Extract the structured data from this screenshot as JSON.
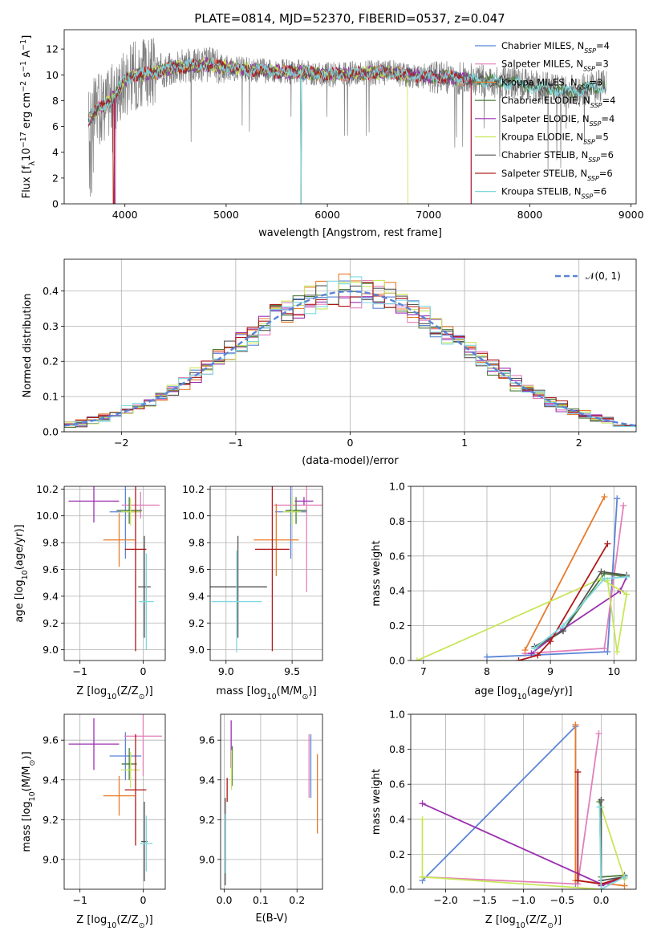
{
  "figure": {
    "title": "PLATE=0814, MJD=52370, FIBERID=0537, z=0.047"
  },
  "models": [
    {
      "name": "Chabrier MILES",
      "nssp": "4",
      "color": "#5b84d6"
    },
    {
      "name": "Salpeter MILES",
      "nssp": "3",
      "color": "#e37fba"
    },
    {
      "name": "Kroupa MILES",
      "nssp": "3",
      "color": "#e87b2c"
    },
    {
      "name": "Chabrier ELODIE",
      "nssp": "4",
      "color": "#4a7a3a"
    },
    {
      "name": "Salpeter ELODIE",
      "nssp": "4",
      "color": "#9b30b0"
    },
    {
      "name": "Kroupa ELODIE",
      "nssp": "5",
      "color": "#c8e65a"
    },
    {
      "name": "Chabrier STELIB",
      "nssp": "6",
      "color": "#555555"
    },
    {
      "name": "Salpeter STELIB",
      "nssp": "6",
      "color": "#b01818"
    },
    {
      "name": "Kroupa STELIB",
      "nssp": "6",
      "color": "#7fd8e0"
    }
  ],
  "chart_data": [
    {
      "id": "spectrum",
      "type": "line",
      "xlabel": "wavelength [Angstrom, rest frame]",
      "ylabel_main": "Flux [f",
      "ylabel_sub": "λ",
      "ylabel_rest": "10",
      "ylabel_exp": "−17",
      "ylabel_units": " erg cm",
      "ylabel_exp2": "−2",
      "ylabel_s": " s",
      "ylabel_exp3": "−1",
      "ylabel_a": " A",
      "ylabel_exp4": "−1",
      "ylabel_close": "]",
      "xlim": [
        3400,
        9050
      ],
      "ylim": [
        0,
        13.5
      ],
      "xticks": [
        4000,
        5000,
        6000,
        7000,
        8000,
        9000
      ],
      "yticks": [
        0,
        2,
        4,
        6,
        8,
        10,
        12
      ],
      "data_color": "#808080",
      "data_range": [
        3640,
        8760
      ],
      "continuum": [
        [
          3640,
          6.5
        ],
        [
          3700,
          7.2
        ],
        [
          3800,
          7.6
        ],
        [
          3900,
          8.4
        ],
        [
          4000,
          9.6
        ],
        [
          4100,
          10.0
        ],
        [
          4300,
          10.2
        ],
        [
          4500,
          10.6
        ],
        [
          4800,
          10.8
        ],
        [
          5100,
          10.5
        ],
        [
          5400,
          10.3
        ],
        [
          5700,
          10.2
        ],
        [
          6000,
          10.0
        ],
        [
          6300,
          10.1
        ],
        [
          6600,
          10.2
        ],
        [
          6900,
          9.9
        ],
        [
          7200,
          9.8
        ],
        [
          7500,
          9.6
        ],
        [
          7800,
          9.4
        ],
        [
          8100,
          9.0
        ],
        [
          8400,
          8.7
        ],
        [
          8760,
          9.2
        ]
      ],
      "model_ranges": [
        [
          3640,
          7420
        ],
        [
          3640,
          7420
        ],
        [
          3640,
          7420
        ],
        [
          3640,
          8740
        ],
        [
          3640,
          7420
        ],
        [
          3640,
          6800
        ],
        [
          3640,
          8740
        ],
        [
          3640,
          7420
        ],
        [
          3640,
          8740
        ]
      ],
      "drops": [
        3890,
        3890,
        3890,
        5740,
        3900,
        6800,
        5740,
        3890,
        5740
      ]
    },
    {
      "id": "residuals",
      "type": "bar",
      "xlabel": "(data-model)/error",
      "ylabel": "Normed distribution",
      "xlim": [
        -2.5,
        2.5
      ],
      "ylim": [
        0,
        0.49
      ],
      "xticks": [
        -2,
        -1,
        0,
        1,
        2
      ],
      "yticks": [
        0,
        0.1,
        0.2,
        0.3,
        0.4
      ],
      "bin_width": 0.1,
      "gaussian_label": "𝒩(0, 1)",
      "gaussian_color": "#5b84d6"
    },
    {
      "id": "age-Z",
      "type": "scatter",
      "xlabel_main": "Z [log",
      "xlabel_sub": "10",
      "xlabel_rest": "(Z/Z",
      "xlabel_sun": "⊙",
      "xlabel_close": ")]",
      "ylabel_main": "age  [log",
      "ylabel_sub": "10",
      "ylabel_rest": "(age/yr)]",
      "xlim": [
        -1.25,
        0.35
      ],
      "ylim": [
        8.92,
        10.22
      ],
      "xticks": [
        -1,
        0
      ],
      "yticks": [
        9.0,
        9.2,
        9.4,
        9.6,
        9.8,
        10.0,
        10.2
      ],
      "points": [
        {
          "m": 0,
          "x": -0.28,
          "y": 10.03,
          "xerr": 0.25,
          "yerr": 0.35
        },
        {
          "m": 1,
          "x": -0.04,
          "y": 10.08,
          "xerr": 0.3,
          "yerr": 0.1
        },
        {
          "m": 2,
          "x": -0.38,
          "y": 9.82,
          "xerr": 0.25,
          "yerr": 0.2
        },
        {
          "m": 3,
          "x": -0.22,
          "y": 10.04,
          "xerr": 0.2,
          "yerr": 0.1
        },
        {
          "m": 4,
          "x": -0.78,
          "y": 10.11,
          "xerr": 0.4,
          "yerr": 0.16
        },
        {
          "m": 5,
          "x": -0.2,
          "y": 10.03,
          "xerr": 0.15,
          "yerr": 0.1
        },
        {
          "m": 6,
          "x": 0.02,
          "y": 9.47,
          "xerr": 0.1,
          "yerr": 0.38
        },
        {
          "m": 7,
          "x": -0.12,
          "y": 9.75,
          "xerr": 0.17,
          "yerr": 0.76
        },
        {
          "m": 8,
          "x": 0.05,
          "y": 9.36,
          "xerr": 0.12,
          "yerr": 0.36
        }
      ]
    },
    {
      "id": "age-mass",
      "type": "scatter",
      "xlabel_main": "mass [log",
      "xlabel_sub": "10",
      "xlabel_rest": "(M/M",
      "xlabel_sun": "⊙",
      "xlabel_close": ")]",
      "xlim": [
        8.88,
        9.73
      ],
      "ylim": [
        8.92,
        10.22
      ],
      "xticks": [
        9.0,
        9.5
      ],
      "yticks": [
        9.0,
        9.2,
        9.4,
        9.6,
        9.8,
        10.0,
        10.2
      ],
      "points": [
        {
          "m": 0,
          "x": 9.49,
          "y": 10.03,
          "xerr": 0.12,
          "yerr": 0.35
        },
        {
          "m": 1,
          "x": 9.61,
          "y": 10.08,
          "xerr": 0.25,
          "yerr": 0.65
        },
        {
          "m": 2,
          "x": 9.38,
          "y": 9.82,
          "xerr": 0.17,
          "yerr": 0.27
        },
        {
          "m": 3,
          "x": 9.53,
          "y": 10.04,
          "xerr": 0.08,
          "yerr": 0.1
        },
        {
          "m": 4,
          "x": 9.59,
          "y": 10.11,
          "xerr": 0.07,
          "yerr": 0.03
        },
        {
          "m": 5,
          "x": 9.5,
          "y": 10.03,
          "xerr": 0.07,
          "yerr": 0.1
        },
        {
          "m": 6,
          "x": 9.09,
          "y": 9.47,
          "xerr": 0.22,
          "yerr": 0.38
        },
        {
          "m": 7,
          "x": 9.35,
          "y": 9.75,
          "xerr": 0.13,
          "yerr": 0.76
        },
        {
          "m": 8,
          "x": 9.08,
          "y": 9.36,
          "xerr": 0.19,
          "yerr": 0.38
        }
      ]
    },
    {
      "id": "weight-age",
      "type": "line",
      "xlabel_main": "age  [log",
      "xlabel_sub": "10",
      "xlabel_rest": "(age/yr)]",
      "ylabel": "mass weight",
      "xlim": [
        6.8,
        10.35
      ],
      "ylim": [
        0,
        1.0
      ],
      "xticks": [
        7,
        8,
        9,
        10
      ],
      "yticks": [
        0,
        0.2,
        0.4,
        0.6,
        0.8,
        1.0
      ],
      "series": [
        {
          "m": 0,
          "x": [
            8.0,
            9.9,
            10.05
          ],
          "y": [
            0.02,
            0.05,
            0.93
          ]
        },
        {
          "m": 1,
          "x": [
            8.6,
            9.85,
            10.15
          ],
          "y": [
            0.04,
            0.07,
            0.89
          ]
        },
        {
          "m": 2,
          "x": [
            8.6,
            9.85
          ],
          "y": [
            0.06,
            0.94
          ]
        },
        {
          "m": 3,
          "x": [
            8.75,
            9.2,
            9.85,
            10.2
          ],
          "y": [
            0.07,
            0.17,
            0.5,
            0.48
          ]
        },
        {
          "m": 4,
          "x": [
            8.7,
            9.2,
            10.1,
            10.2
          ],
          "y": [
            0.04,
            0.18,
            0.4,
            0.48
          ]
        },
        {
          "m": 5,
          "x": [
            6.9,
            9.8,
            10.2,
            10.05,
            9.9
          ],
          "y": [
            0.0,
            0.47,
            0.38,
            0.05,
            0.46
          ]
        },
        {
          "m": 6,
          "x": [
            8.75,
            9.2,
            9.8,
            10.2
          ],
          "y": [
            0.08,
            0.17,
            0.51,
            0.49
          ]
        },
        {
          "m": 7,
          "x": [
            8.5,
            8.8,
            9.0,
            9.9
          ],
          "y": [
            0.0,
            0.03,
            0.11,
            0.67
          ]
        },
        {
          "m": 8,
          "x": [
            8.75,
            9.2,
            9.85,
            10.2
          ],
          "y": [
            0.07,
            0.2,
            0.47,
            0.48
          ]
        }
      ]
    },
    {
      "id": "mass-Z",
      "type": "scatter",
      "xlabel_main": "Z [log",
      "xlabel_sub": "10",
      "xlabel_rest": "(Z/Z",
      "xlabel_sun": "⊙",
      "xlabel_close": ")]",
      "ylabel_main": "mass [log",
      "ylabel_sub": "10",
      "ylabel_rest": "(M/M",
      "ylabel_sun": "⊙",
      "ylabel_close": ")]",
      "xlim": [
        -1.25,
        0.35
      ],
      "ylim": [
        8.85,
        9.73
      ],
      "xticks": [
        -1,
        0
      ],
      "yticks": [
        9.0,
        9.2,
        9.4,
        9.6
      ],
      "points": [
        {
          "m": 0,
          "x": -0.28,
          "y": 9.52,
          "xerr": 0.25,
          "yerr": 0.12
        },
        {
          "m": 1,
          "x": 0.0,
          "y": 9.62,
          "xerr": 0.3,
          "yerr": 0.2
        },
        {
          "m": 2,
          "x": -0.38,
          "y": 9.32,
          "xerr": 0.25,
          "yerr": 0.1
        },
        {
          "m": 3,
          "x": -0.22,
          "y": 9.48,
          "xerr": 0.12,
          "yerr": 0.08
        },
        {
          "m": 4,
          "x": -0.78,
          "y": 9.58,
          "xerr": 0.4,
          "yerr": 0.13
        },
        {
          "m": 5,
          "x": -0.2,
          "y": 9.45,
          "xerr": 0.15,
          "yerr": 0.09
        },
        {
          "m": 6,
          "x": 0.02,
          "y": 9.09,
          "xerr": 0.05,
          "yerr": 0.2
        },
        {
          "m": 7,
          "x": -0.12,
          "y": 9.35,
          "xerr": 0.17,
          "yerr": 0.28
        },
        {
          "m": 8,
          "x": 0.05,
          "y": 9.08,
          "xerr": 0.1,
          "yerr": 0.14
        }
      ]
    },
    {
      "id": "mass-EBV",
      "type": "scatter",
      "xlabel": "E(B-V)",
      "xlim": [
        -0.01,
        0.27
      ],
      "ylim": [
        8.85,
        9.73
      ],
      "xticks": [
        0.0,
        0.1,
        0.2
      ],
      "xtick_labels": [
        "0.0",
        "0.1",
        "0.2"
      ],
      "yticks": [
        9.0,
        9.2,
        9.4,
        9.6
      ],
      "points": [
        {
          "m": 0,
          "x": 0.238,
          "y": 9.47,
          "yerr": 0.16
        },
        {
          "m": 1,
          "x": 0.233,
          "y": 9.47,
          "yerr": 0.16
        },
        {
          "m": 2,
          "x": 0.256,
          "y": 9.33,
          "yerr": 0.2
        },
        {
          "m": 3,
          "x": 0.022,
          "y": 9.47,
          "yerr": 0.1
        },
        {
          "m": 4,
          "x": 0.019,
          "y": 9.58,
          "yerr": 0.12
        },
        {
          "m": 5,
          "x": 0.02,
          "y": 9.45,
          "yerr": 0.1
        },
        {
          "m": 6,
          "x": 0.003,
          "y": 9.09,
          "yerr": 0.22
        },
        {
          "m": 7,
          "x": 0.008,
          "y": 9.35,
          "yerr": 0.06
        },
        {
          "m": 8,
          "x": 0.002,
          "y": 9.08,
          "yerr": 0.15
        }
      ]
    },
    {
      "id": "weight-Z",
      "type": "line",
      "xlabel_main": "Z [log",
      "xlabel_sub": "10",
      "xlabel_rest": "(Z/Z",
      "xlabel_sun": "⊙",
      "xlabel_close": ")]",
      "ylabel": "mass weight",
      "xlim": [
        -2.45,
        0.45
      ],
      "ylim": [
        0,
        1.0
      ],
      "xticks": [
        -2.0,
        -1.5,
        -1.0,
        -0.5,
        0.0
      ],
      "xtick_labels": [
        "−2.0",
        "−1.5",
        "−1.0",
        "−0.5",
        "0.0"
      ],
      "yticks": [
        0,
        0.2,
        0.4,
        0.6,
        0.8,
        1.0
      ],
      "series": [
        {
          "m": 0,
          "x": [
            -2.3,
            -0.33,
            -0.33
          ],
          "y": [
            0.05,
            0.93,
            0.03
          ]
        },
        {
          "m": 1,
          "x": [
            -2.3,
            -0.3,
            -0.03
          ],
          "y": [
            0.07,
            0.03,
            0.89
          ]
        },
        {
          "m": 2,
          "x": [
            -0.33,
            -0.33,
            0.3
          ],
          "y": [
            0.94,
            0.05,
            0.02
          ]
        },
        {
          "m": 3,
          "x": [
            -0.02,
            0.0,
            0.3
          ],
          "y": [
            0.5,
            0.07,
            0.08
          ]
        },
        {
          "m": 4,
          "x": [
            -2.3,
            0.0,
            0.0,
            0.3
          ],
          "y": [
            0.49,
            0.03,
            0.02,
            0.07
          ]
        },
        {
          "m": 5,
          "x": [
            -2.3,
            -2.3,
            0.0,
            0.0,
            0.3
          ],
          "y": [
            0.4,
            0.07,
            0.0,
            0.47,
            0.06
          ]
        },
        {
          "m": 6,
          "x": [
            0.0,
            0.0,
            0.3
          ],
          "y": [
            0.51,
            0.05,
            0.07
          ]
        },
        {
          "m": 7,
          "x": [
            -0.3,
            -0.3,
            0.0,
            0.3
          ],
          "y": [
            0.67,
            0.05,
            0.03,
            0.07
          ]
        },
        {
          "m": 8,
          "x": [
            -0.02,
            0.0,
            0.3
          ],
          "y": [
            0.47,
            0.0,
            0.07
          ]
        }
      ]
    }
  ]
}
